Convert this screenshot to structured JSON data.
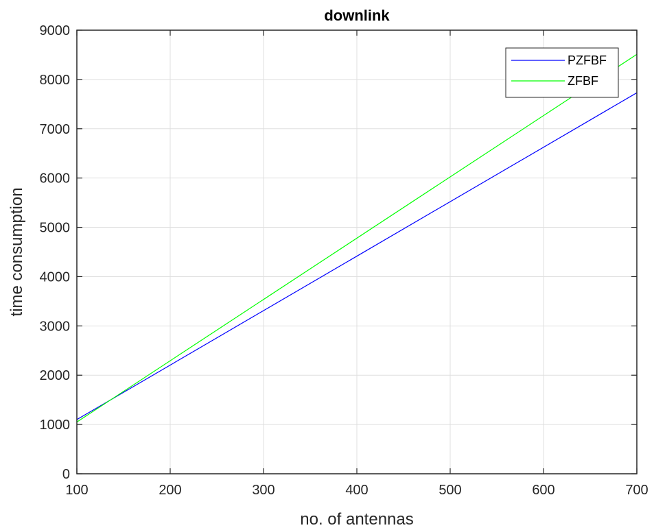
{
  "chart_data": {
    "type": "line",
    "title": "downlink",
    "xlabel": "no. of antennas",
    "ylabel": "time consumption",
    "xlim": [
      100,
      700
    ],
    "ylim": [
      0,
      9000
    ],
    "xticks": [
      100,
      200,
      300,
      400,
      500,
      600,
      700
    ],
    "yticks": [
      0,
      1000,
      2000,
      3000,
      4000,
      5000,
      6000,
      7000,
      8000,
      9000
    ],
    "grid": true,
    "legend_position": "top-right",
    "x": [
      100,
      700
    ],
    "series": [
      {
        "name": "PZFBF",
        "color": "#0000ff",
        "values": [
          1100,
          7730
        ]
      },
      {
        "name": "ZFBF",
        "color": "#00ff00",
        "values": [
          1050,
          8510
        ]
      }
    ]
  }
}
